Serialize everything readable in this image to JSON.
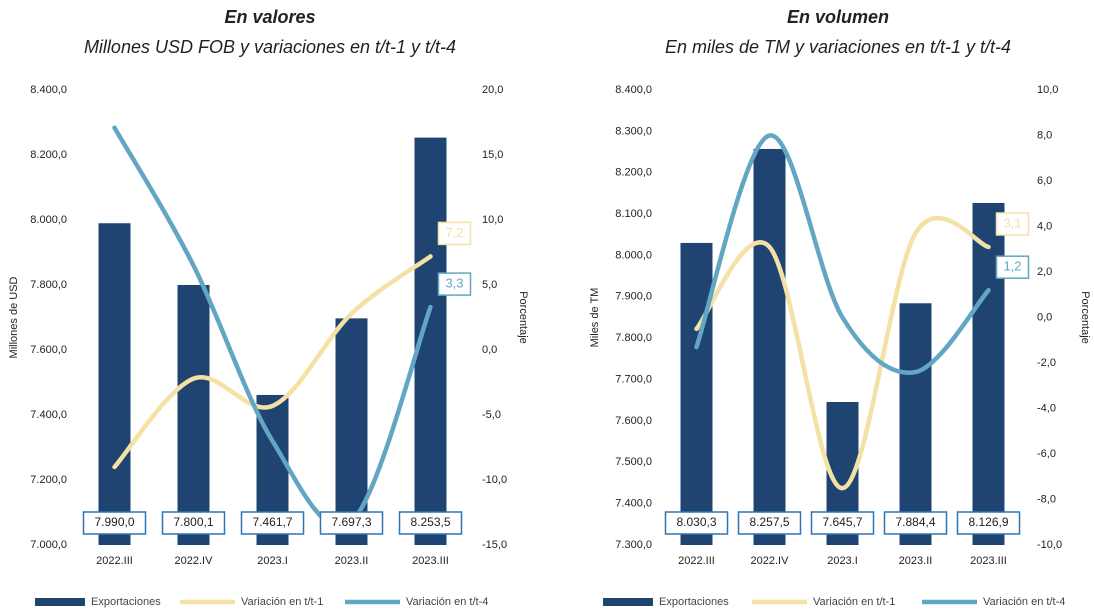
{
  "chart_data": [
    {
      "type": "bar",
      "title": "En valores",
      "subtitle": "Millones USD FOB y variaciones en t/t-1 y t/t-4",
      "y_label": "Millones de USD",
      "y2_label": "Porcentaje",
      "categories": [
        "2022.III",
        "2022.IV",
        "2023.I",
        "2023.II",
        "2023.III"
      ],
      "ylim": [
        7000,
        8400
      ],
      "yticks": [
        {
          "value": 7000,
          "label": "7.000,0"
        },
        {
          "value": 7200,
          "label": "7.200,0"
        },
        {
          "value": 7400,
          "label": "7.400,0"
        },
        {
          "value": 7600,
          "label": "7.600,0"
        },
        {
          "value": 7800,
          "label": "7.800,0"
        },
        {
          "value": 8000,
          "label": "8.000,0"
        },
        {
          "value": 8200,
          "label": "8.200,0"
        },
        {
          "value": 8400,
          "label": "8.400,0"
        }
      ],
      "y2lim": [
        -15,
        20
      ],
      "y2ticks": [
        {
          "value": -15,
          "label": "-15,0"
        },
        {
          "value": -10,
          "label": "-10,0"
        },
        {
          "value": -5,
          "label": "-5,0"
        },
        {
          "value": 0,
          "label": "0,0"
        },
        {
          "value": 5,
          "label": "5,0"
        },
        {
          "value": 10,
          "label": "10,0"
        },
        {
          "value": 15,
          "label": "15,0"
        },
        {
          "value": 20,
          "label": "20,0"
        }
      ],
      "series": [
        {
          "name": "Exportaciones",
          "type": "bar",
          "color": "#1f4471",
          "values": [
            7990.0,
            7800.1,
            7461.7,
            7697.3,
            8253.5
          ],
          "value_labels": [
            "7.990,0",
            "7.800,1",
            "7.461,7",
            "7.697,3",
            "8.253,5"
          ]
        },
        {
          "name": "Variación en t/t-1",
          "type": "line",
          "axis": "y2",
          "color": "#f3e1a5",
          "values": [
            -9.0,
            -2.2,
            -4.3,
            2.8,
            7.2
          ],
          "value_labels": [
            null,
            null,
            null,
            null,
            "7,2"
          ]
        },
        {
          "name": "Variación en t/t-4",
          "type": "line",
          "axis": "y2",
          "color": "#62a6c4",
          "values": [
            17.1,
            6.5,
            -7.0,
            -13.2,
            3.3
          ],
          "value_labels": [
            null,
            null,
            null,
            null,
            "3,3"
          ]
        }
      ]
    },
    {
      "type": "bar",
      "title": "En volumen",
      "subtitle": "En miles de TM y variaciones en t/t-1 y t/t-4",
      "y_label": "Miles de TM",
      "y2_label": "Porcentaje",
      "categories": [
        "2022.III",
        "2022.IV",
        "2023.I",
        "2023.II",
        "2023.III"
      ],
      "ylim": [
        7300,
        8400
      ],
      "yticks": [
        {
          "value": 7300,
          "label": "7.300,0"
        },
        {
          "value": 7400,
          "label": "7.400,0"
        },
        {
          "value": 7500,
          "label": "7.500,0"
        },
        {
          "value": 7600,
          "label": "7.600,0"
        },
        {
          "value": 7700,
          "label": "7.700,0"
        },
        {
          "value": 7800,
          "label": "7.800,0"
        },
        {
          "value": 7900,
          "label": "7.900,0"
        },
        {
          "value": 8000,
          "label": "8.000,0"
        },
        {
          "value": 8100,
          "label": "8.100,0"
        },
        {
          "value": 8200,
          "label": "8.200,0"
        },
        {
          "value": 8300,
          "label": "8.300,0"
        },
        {
          "value": 8400,
          "label": "8.400,0"
        }
      ],
      "y2lim": [
        -10,
        10
      ],
      "y2ticks": [
        {
          "value": -10,
          "label": "-10,0"
        },
        {
          "value": -8,
          "label": "-8,0"
        },
        {
          "value": -6,
          "label": "-6,0"
        },
        {
          "value": -4,
          "label": "-4,0"
        },
        {
          "value": -2,
          "label": "-2,0"
        },
        {
          "value": 0,
          "label": "0,0"
        },
        {
          "value": 2,
          "label": "2,0"
        },
        {
          "value": 4,
          "label": "4,0"
        },
        {
          "value": 6,
          "label": "6,0"
        },
        {
          "value": 8,
          "label": "8,0"
        },
        {
          "value": 10,
          "label": "10,0"
        }
      ],
      "series": [
        {
          "name": "Exportaciones",
          "type": "bar",
          "color": "#1f4471",
          "values": [
            8030.3,
            8257.5,
            7645.7,
            7884.4,
            8126.9
          ],
          "value_labels": [
            "8.030,3",
            "8.257,5",
            "7.645,7",
            "7.884,4",
            "8.126,9"
          ]
        },
        {
          "name": "Variación en t/t-1",
          "type": "line",
          "axis": "y2",
          "color": "#f3e1a5",
          "values": [
            -0.5,
            3.1,
            -7.5,
            3.7,
            3.1
          ],
          "value_labels": [
            null,
            null,
            null,
            null,
            "3,1"
          ]
        },
        {
          "name": "Variación en t/t-4",
          "type": "line",
          "axis": "y2",
          "color": "#62a6c4",
          "values": [
            -1.3,
            8.0,
            0.0,
            -2.4,
            1.2
          ],
          "value_labels": [
            null,
            null,
            null,
            null,
            "1,2"
          ]
        }
      ]
    }
  ]
}
